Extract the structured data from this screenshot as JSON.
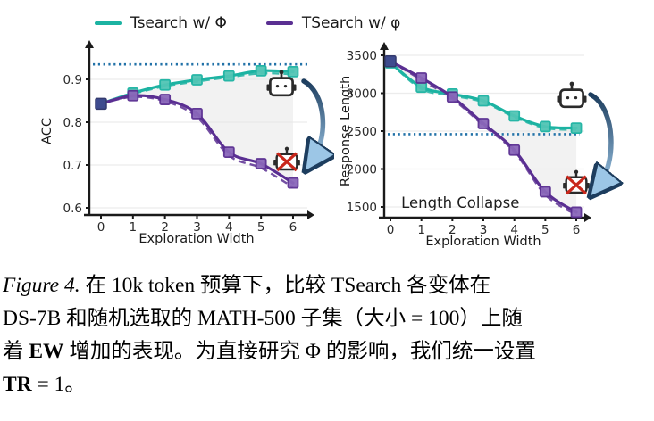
{
  "legend": {
    "items": [
      {
        "label": "Tsearch w/ Φ",
        "color": "#1cb3a2"
      },
      {
        "label": "TSearch w/ φ",
        "color": "#5a2f92"
      }
    ]
  },
  "colors": {
    "teal_line": "#1cb3a2",
    "teal_marker_fill": "#52c5b5",
    "purple_line": "#5a2f92",
    "purple_marker_fill": "#8a67ba",
    "start_marker": "#3e4b8e",
    "reference_dotted": "#2272a8",
    "shade_fill": "#e7e7e7",
    "arrow_gradient_from": "#1d3d5e",
    "arrow_gradient_to": "#9cc6e6",
    "robot_stroke": "#2b2b2b",
    "robot_cross": "#c9271b",
    "axis": "#1a1a1a"
  },
  "chart_data": [
    {
      "type": "line",
      "title": "",
      "xlabel": "Exploration Width",
      "ylabel": "ACC",
      "x": [
        0,
        1,
        2,
        3,
        4,
        5,
        6
      ],
      "xtick_labels": [
        "0",
        "1",
        "2",
        "3",
        "4",
        "5",
        "6"
      ],
      "yticks": [
        0.6,
        0.7,
        0.8,
        0.9
      ],
      "ytick_labels": [
        "0.6",
        "0.7",
        "0.8",
        "0.9"
      ],
      "ylim": [
        0.585,
        0.95
      ],
      "grid": "faint horizontal",
      "legend_position": "above figure",
      "reference_line": {
        "value": 0.935,
        "style": "dotted"
      },
      "series": [
        {
          "name": "Tsearch w/ Φ",
          "style": "solid",
          "marker": "square",
          "color": "#1cb3a2",
          "values": [
            0.843,
            0.868,
            0.887,
            0.899,
            0.908,
            0.92,
            0.918
          ]
        },
        {
          "name": "Tsearch w/ Φ dashed trend",
          "style": "dashed",
          "marker": "none",
          "color": "#1cb3a2",
          "values": [
            0.843,
            0.866,
            0.884,
            0.895,
            0.905,
            0.914,
            0.912
          ]
        },
        {
          "name": "TSearch w/ φ",
          "style": "solid",
          "marker": "square",
          "color": "#5a2f92",
          "values": [
            0.843,
            0.862,
            0.853,
            0.82,
            0.73,
            0.703,
            0.658
          ]
        },
        {
          "name": "TSearch w/ φ dashed trend",
          "style": "dashed",
          "marker": "none",
          "color": "#5a2f92",
          "values": [
            0.843,
            0.859,
            0.849,
            0.812,
            0.722,
            0.693,
            0.648
          ]
        }
      ],
      "shaded_between": [
        "Tsearch w/ Φ",
        "TSearch w/ φ"
      ],
      "annotations": [],
      "icons": [
        {
          "name": "robot-icon",
          "meaning": "healthy model"
        },
        {
          "name": "robot-crossed-icon",
          "meaning": "collapsed model"
        },
        {
          "name": "curved-arrow",
          "meaning": "from healthy robot to collapsed robot"
        }
      ]
    },
    {
      "type": "line",
      "title": "",
      "xlabel": "Exploration Width",
      "ylabel": "Response Length",
      "x": [
        0,
        1,
        2,
        3,
        4,
        5,
        6
      ],
      "xtick_labels": [
        "0",
        "1",
        "2",
        "3",
        "4",
        "5",
        "6"
      ],
      "yticks": [
        1500,
        2000,
        2500,
        3000,
        3500
      ],
      "ytick_labels": [
        "1500",
        "2000",
        "2500",
        "3000",
        "3500"
      ],
      "ylim": [
        1250,
        3650
      ],
      "grid": "faint horizontal",
      "reference_line": {
        "value": 2460,
        "style": "dotted"
      },
      "series": [
        {
          "name": "Tsearch w/ Φ",
          "style": "solid",
          "marker": "square",
          "color": "#1cb3a2",
          "values": [
            3400,
            3080,
            2990,
            2900,
            2700,
            2560,
            2540
          ]
        },
        {
          "name": "Tsearch w/ Φ dashed trend",
          "style": "dashed",
          "marker": "none",
          "color": "#1cb3a2",
          "values": [
            3400,
            3055,
            2970,
            2880,
            2685,
            2540,
            2518
          ]
        },
        {
          "name": "TSearch w/ φ",
          "style": "solid",
          "marker": "square",
          "color": "#5a2f92",
          "values": [
            3420,
            3200,
            2950,
            2600,
            2250,
            1700,
            1430
          ]
        },
        {
          "name": "TSearch w/ φ dashed trend",
          "style": "dashed",
          "marker": "none",
          "color": "#5a2f92",
          "values": [
            3420,
            3175,
            2925,
            2575,
            2225,
            1660,
            1395
          ]
        }
      ],
      "shaded_between": [
        "Tsearch w/ Φ",
        "TSearch w/ φ"
      ],
      "annotations": [
        {
          "text": "Length Collapse",
          "x": 0.35,
          "y": 1545
        }
      ],
      "icons": [
        {
          "name": "robot-icon",
          "meaning": "healthy model"
        },
        {
          "name": "robot-crossed-icon",
          "meaning": "collapsed model"
        },
        {
          "name": "curved-arrow",
          "meaning": "from healthy robot to collapsed robot"
        }
      ]
    }
  ],
  "caption": {
    "lines": [
      [
        {
          "style": "italic",
          "text": "Figure 4."
        },
        {
          "style": "normal",
          "text": "  在 10k token 预算下，比较 TSearch 各变体在"
        }
      ],
      [
        {
          "style": "normal",
          "text": "DS-7B 和随机选取的 MATH-500 子集（大小 = 100）上随"
        }
      ],
      [
        {
          "style": "normal",
          "text": "着 "
        },
        {
          "style": "bold",
          "text": "EW"
        },
        {
          "style": "normal",
          "text": " 增加的表现。为直接研究 Φ 的影响，我们统一设置"
        }
      ],
      [
        {
          "style": "bold",
          "text": "TR"
        },
        {
          "style": "normal",
          "text": " = 1。"
        }
      ]
    ]
  }
}
